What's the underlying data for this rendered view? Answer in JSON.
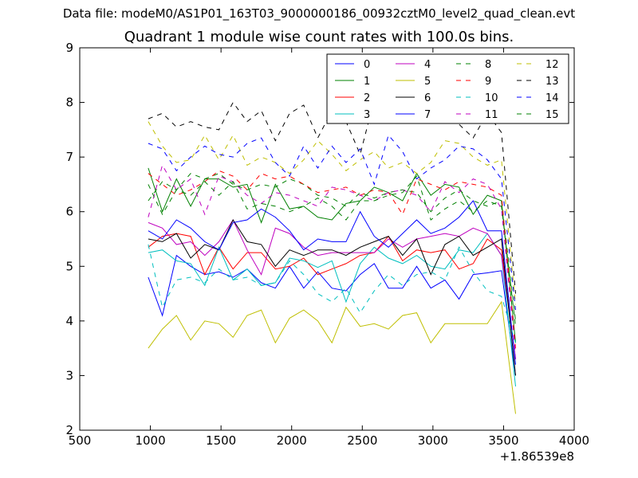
{
  "header": {
    "suptitle": "Data file: modeM0/AS1P01_163T03_9000000186_00932cztM0_level2_quad_clean.evt"
  },
  "chart_data": {
    "type": "line",
    "title": "Quadrant 1 module wise count rates with 100.0s bins.",
    "xlabel": "",
    "ylabel": "",
    "xlim": [
      500,
      4000
    ],
    "ylim": [
      2,
      9
    ],
    "x_offset_label": "+1.86539e8",
    "x_ticks": [
      500,
      1000,
      1500,
      2000,
      2500,
      3000,
      3500,
      4000
    ],
    "y_ticks": [
      2,
      3,
      4,
      5,
      6,
      7,
      8,
      9
    ],
    "grid": false,
    "legend_position": "top-right",
    "legend_columns": 4,
    "x": [
      985,
      1085,
      1185,
      1285,
      1385,
      1485,
      1585,
      1685,
      1785,
      1885,
      1985,
      2085,
      2185,
      2285,
      2385,
      2485,
      2585,
      2685,
      2785,
      2885,
      2985,
      3085,
      3185,
      3285,
      3385,
      3485,
      3585
    ],
    "series": [
      {
        "name": "0",
        "color": "#0000ff",
        "dash": "solid",
        "values": [
          4.8,
          4.1,
          5.2,
          5.0,
          4.85,
          4.9,
          4.8,
          4.95,
          4.7,
          4.6,
          5.0,
          4.6,
          4.9,
          4.6,
          4.55,
          4.85,
          5.05,
          4.6,
          4.6,
          5.0,
          4.6,
          4.75,
          4.4,
          4.85,
          4.88,
          4.92,
          3.0
        ]
      },
      {
        "name": "1",
        "color": "#008000",
        "dash": "solid",
        "values": [
          6.8,
          6.0,
          6.6,
          6.1,
          6.6,
          6.6,
          6.45,
          6.5,
          5.8,
          6.5,
          6.05,
          6.1,
          5.9,
          5.85,
          6.15,
          6.2,
          6.45,
          6.35,
          6.2,
          6.7,
          6.3,
          6.5,
          6.45,
          5.95,
          6.3,
          6.2,
          3.6
        ]
      },
      {
        "name": "2",
        "color": "#ff0000",
        "dash": "solid",
        "values": [
          5.35,
          5.55,
          5.6,
          5.55,
          4.85,
          5.35,
          4.95,
          5.25,
          5.25,
          4.95,
          5.0,
          5.15,
          4.85,
          4.95,
          5.05,
          5.2,
          5.25,
          5.55,
          5.1,
          5.3,
          5.25,
          5.3,
          4.95,
          5.05,
          5.5,
          5.3,
          3.3
        ]
      },
      {
        "name": "3",
        "color": "#00bfbf",
        "dash": "solid",
        "values": [
          5.25,
          5.3,
          5.1,
          5.05,
          4.65,
          5.35,
          4.75,
          4.95,
          4.65,
          4.7,
          5.15,
          5.1,
          4.98,
          5.1,
          4.35,
          5.05,
          5.35,
          5.15,
          5.05,
          5.2,
          5.0,
          4.95,
          5.3,
          5.25,
          5.6,
          5.2,
          2.8
        ]
      },
      {
        "name": "4",
        "color": "#bf00bf",
        "dash": "solid",
        "values": [
          5.8,
          5.7,
          5.4,
          5.45,
          5.2,
          5.45,
          5.85,
          5.3,
          4.85,
          5.7,
          5.6,
          5.35,
          5.2,
          5.25,
          5.25,
          5.25,
          5.25,
          5.5,
          5.35,
          5.5,
          5.55,
          5.6,
          5.55,
          5.7,
          5.6,
          5.2,
          3.3
        ]
      },
      {
        "name": "5",
        "color": "#bfbf00",
        "dash": "solid",
        "values": [
          3.5,
          3.85,
          4.1,
          3.65,
          4.0,
          3.95,
          3.7,
          4.1,
          4.2,
          3.6,
          4.05,
          4.2,
          4.0,
          3.6,
          4.25,
          3.9,
          3.95,
          3.85,
          4.1,
          4.15,
          3.6,
          3.95,
          3.95,
          3.95,
          3.95,
          4.35,
          2.3
        ]
      },
      {
        "name": "6",
        "color": "#000000",
        "dash": "solid",
        "values": [
          5.5,
          5.45,
          5.6,
          5.15,
          5.4,
          5.3,
          5.85,
          5.45,
          5.4,
          5.0,
          5.3,
          5.2,
          5.3,
          5.3,
          5.2,
          5.35,
          5.45,
          5.55,
          5.2,
          5.5,
          4.85,
          5.4,
          5.55,
          5.2,
          5.35,
          5.5,
          3.0
        ]
      },
      {
        "name": "7",
        "color": "#0000ff",
        "dash": "solid",
        "values": [
          5.65,
          5.5,
          5.85,
          5.7,
          5.45,
          5.3,
          5.8,
          5.85,
          6.05,
          5.9,
          5.65,
          5.3,
          5.5,
          5.45,
          5.45,
          6.0,
          5.55,
          5.35,
          5.6,
          5.85,
          5.6,
          5.7,
          5.9,
          6.2,
          5.65,
          5.65,
          3.2
        ]
      },
      {
        "name": "8",
        "color": "#008000",
        "dash": "dashed",
        "values": [
          6.2,
          6.55,
          6.4,
          6.7,
          6.6,
          6.7,
          6.5,
          6.4,
          6.5,
          6.45,
          6.6,
          6.5,
          6.3,
          6.25,
          6.1,
          6.35,
          6.25,
          6.35,
          6.4,
          6.35,
          6.0,
          6.25,
          6.4,
          6.2,
          6.1,
          6.2,
          4.0
        ]
      },
      {
        "name": "9",
        "color": "#ff0000",
        "dash": "dashed",
        "values": [
          6.7,
          6.5,
          6.3,
          6.4,
          6.55,
          6.75,
          6.65,
          6.4,
          6.7,
          6.6,
          6.65,
          6.5,
          6.35,
          6.4,
          6.45,
          6.3,
          6.4,
          6.35,
          5.95,
          6.6,
          6.5,
          6.4,
          6.55,
          6.5,
          6.45,
          6.3,
          3.5
        ]
      },
      {
        "name": "10",
        "color": "#00bfbf",
        "dash": "dashed",
        "values": [
          5.4,
          4.25,
          4.75,
          4.8,
          4.7,
          4.95,
          4.75,
          4.8,
          4.65,
          4.7,
          5.1,
          4.85,
          4.5,
          4.35,
          4.6,
          4.15,
          4.55,
          4.85,
          4.65,
          4.85,
          4.9,
          4.75,
          5.35,
          4.9,
          4.55,
          4.45,
          3.6
        ]
      },
      {
        "name": "11",
        "color": "#bf00bf",
        "dash": "dashed",
        "values": [
          5.9,
          6.85,
          6.4,
          6.6,
          5.95,
          6.65,
          6.55,
          6.3,
          6.15,
          6.35,
          6.3,
          6.2,
          6.1,
          6.45,
          6.4,
          6.3,
          6.2,
          6.35,
          6.4,
          6.3,
          6.0,
          6.55,
          6.35,
          6.6,
          6.5,
          6.05,
          3.4
        ]
      },
      {
        "name": "12",
        "color": "#bfbf00",
        "dash": "dashed",
        "values": [
          7.65,
          7.2,
          6.9,
          6.95,
          7.4,
          6.95,
          7.4,
          6.85,
          7.0,
          6.9,
          6.7,
          6.95,
          7.3,
          7.05,
          6.75,
          6.95,
          7.1,
          6.8,
          6.9,
          6.7,
          6.9,
          7.3,
          7.25,
          7.0,
          6.85,
          6.95,
          4.3
        ]
      },
      {
        "name": "13",
        "color": "#000000",
        "dash": "dashed",
        "values": [
          7.7,
          7.8,
          7.55,
          7.65,
          7.55,
          7.5,
          8.0,
          7.65,
          7.85,
          7.3,
          7.8,
          7.95,
          7.35,
          7.85,
          7.65,
          7.05,
          8.05,
          7.6,
          7.85,
          7.85,
          7.85,
          7.75,
          7.6,
          7.35,
          7.8,
          7.45,
          4.5
        ]
      },
      {
        "name": "14",
        "color": "#0000ff",
        "dash": "dashed",
        "values": [
          7.25,
          7.15,
          6.75,
          7.0,
          7.2,
          7.05,
          7.0,
          7.25,
          7.35,
          6.9,
          6.65,
          7.2,
          6.8,
          7.2,
          6.9,
          7.15,
          6.5,
          7.4,
          7.1,
          6.6,
          6.8,
          6.95,
          7.2,
          7.15,
          6.95,
          6.6,
          4.2
        ]
      },
      {
        "name": "15",
        "color": "#008000",
        "dash": "dashed",
        "values": [
          6.5,
          5.95,
          6.4,
          6.3,
          6.55,
          6.3,
          6.55,
          6.05,
          6.15,
          6.1,
          6.0,
          6.1,
          6.25,
          6.1,
          5.85,
          6.2,
          6.2,
          6.3,
          6.35,
          6.65,
          5.85,
          6.05,
          6.2,
          6.0,
          6.2,
          6.1,
          3.9
        ]
      }
    ]
  }
}
